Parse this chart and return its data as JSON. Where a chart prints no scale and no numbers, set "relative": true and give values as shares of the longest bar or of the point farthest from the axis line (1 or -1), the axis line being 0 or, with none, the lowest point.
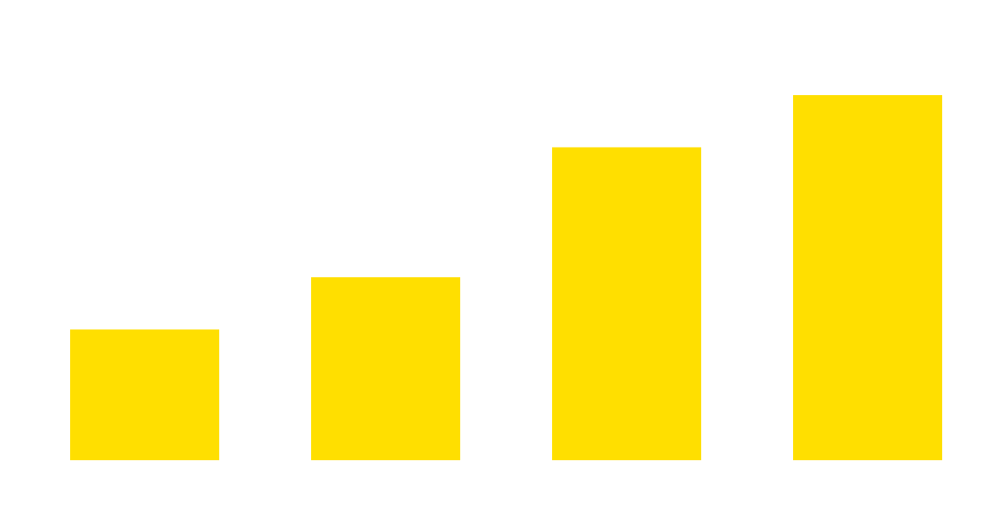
{
  "chart_data": {
    "type": "bar",
    "relative": true,
    "categories": [
      null,
      null,
      null,
      null
    ],
    "values": [
      0.358,
      0.501,
      0.857,
      1
    ],
    "color": "#ffdf00"
  }
}
